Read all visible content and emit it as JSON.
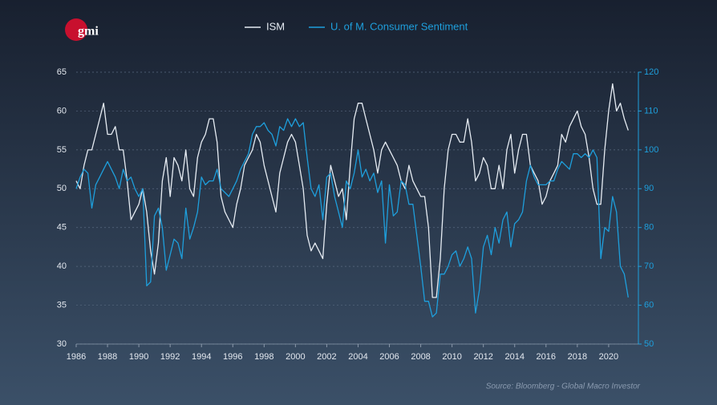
{
  "logo": "gmi",
  "chart_data": {
    "type": "line",
    "x": [
      1986,
      1986.25,
      1986.5,
      1986.75,
      1987,
      1987.25,
      1987.5,
      1987.75,
      1988,
      1988.25,
      1988.5,
      1988.75,
      1989,
      1989.25,
      1989.5,
      1989.75,
      1990,
      1990.25,
      1990.5,
      1990.75,
      1991,
      1991.25,
      1991.5,
      1991.75,
      1992,
      1992.25,
      1992.5,
      1992.75,
      1993,
      1993.25,
      1993.5,
      1993.75,
      1994,
      1994.25,
      1994.5,
      1994.75,
      1995,
      1995.25,
      1995.5,
      1995.75,
      1996,
      1996.25,
      1996.5,
      1996.75,
      1997,
      1997.25,
      1997.5,
      1997.75,
      1998,
      1998.25,
      1998.5,
      1998.75,
      1999,
      1999.25,
      1999.5,
      1999.75,
      2000,
      2000.25,
      2000.5,
      2000.75,
      2001,
      2001.25,
      2001.5,
      2001.75,
      2002,
      2002.25,
      2002.5,
      2002.75,
      2003,
      2003.25,
      2003.5,
      2003.75,
      2004,
      2004.25,
      2004.5,
      2004.75,
      2005,
      2005.25,
      2005.5,
      2005.75,
      2006,
      2006.25,
      2006.5,
      2006.75,
      2007,
      2007.25,
      2007.5,
      2007.75,
      2008,
      2008.25,
      2008.5,
      2008.75,
      2009,
      2009.25,
      2009.5,
      2009.75,
      2010,
      2010.25,
      2010.5,
      2010.75,
      2011,
      2011.25,
      2011.5,
      2011.75,
      2012,
      2012.25,
      2012.5,
      2012.75,
      2013,
      2013.25,
      2013.5,
      2013.75,
      2014,
      2014.25,
      2014.5,
      2014.75,
      2015,
      2015.25,
      2015.5,
      2015.75,
      2016,
      2016.25,
      2016.5,
      2016.75,
      2017,
      2017.25,
      2017.5,
      2017.75,
      2018,
      2018.25,
      2018.5,
      2018.75,
      2019,
      2019.25,
      2019.5,
      2019.75,
      2020,
      2020.25,
      2020.5,
      2020.75,
      2021,
      2021.25
    ],
    "series": [
      {
        "name": "ISM",
        "color": "#e6ecf3",
        "values": [
          51,
          50,
          53,
          55,
          55,
          57,
          59,
          61,
          57,
          57,
          58,
          55,
          55,
          51,
          46,
          47,
          48,
          50,
          47,
          42,
          39,
          43,
          51,
          54,
          49,
          54,
          53,
          51,
          55,
          50,
          49,
          54,
          56,
          57,
          59,
          59,
          56,
          49,
          47,
          46,
          45,
          48,
          50,
          53,
          54,
          55,
          57,
          56,
          53,
          51,
          49,
          47,
          52,
          54,
          56,
          57,
          56,
          53,
          50,
          44,
          42,
          43,
          42,
          41,
          48,
          53,
          51,
          49,
          50,
          46,
          53,
          59,
          61,
          61,
          59,
          57,
          55,
          52,
          55,
          56,
          55,
          54,
          53,
          51,
          50,
          53,
          51,
          50,
          49,
          49,
          45,
          36,
          36,
          41,
          50,
          55,
          57,
          57,
          56,
          56,
          59,
          56,
          51,
          52,
          54,
          53,
          50,
          50,
          53,
          50,
          55,
          57,
          52,
          55,
          57,
          57,
          53,
          52,
          51,
          48,
          49,
          51,
          52,
          53,
          57,
          56,
          58,
          59,
          60,
          58,
          57,
          54,
          50,
          48,
          48,
          55,
          60,
          63.5,
          60,
          61,
          59,
          57.5
        ]
      },
      {
        "name": "U. of M. Consumer Sentiment",
        "color": "#1e9fdc",
        "axis": "y2",
        "values": [
          90,
          93,
          95,
          94,
          85,
          91,
          93,
          95,
          97,
          95,
          93,
          90,
          95,
          92,
          93,
          90,
          88,
          90,
          65,
          66,
          83,
          85,
          80,
          69,
          73,
          77,
          76,
          72,
          85,
          77,
          80,
          84,
          93,
          91,
          92,
          92,
          95,
          90,
          89,
          88,
          90,
          92,
          95,
          97,
          99,
          104,
          106,
          106,
          107,
          105,
          104,
          101,
          106,
          105,
          108,
          106,
          108,
          106,
          107,
          98,
          90,
          88,
          91,
          82,
          93,
          94,
          88,
          84,
          80,
          92,
          90,
          94,
          100,
          93,
          95,
          92,
          94,
          89,
          92,
          76,
          91,
          83,
          84,
          92,
          91,
          86,
          86,
          78,
          70,
          61,
          61,
          57,
          58,
          68,
          68,
          70,
          73,
          74,
          70,
          72,
          75,
          72,
          58,
          64,
          75,
          78,
          73,
          80,
          76,
          82,
          84,
          75,
          81,
          82,
          84,
          92,
          96,
          93,
          91,
          91,
          91,
          92,
          92,
          95,
          97,
          96,
          95,
          99,
          99,
          98,
          99,
          98,
          100,
          98,
          72,
          80,
          79,
          88,
          84,
          70,
          68,
          62
        ]
      }
    ],
    "xlim": [
      1986,
      2021.9
    ],
    "xticks": [
      1986,
      1988,
      1990,
      1992,
      1994,
      1996,
      1998,
      2000,
      2002,
      2004,
      2006,
      2008,
      2010,
      2012,
      2014,
      2016,
      2018,
      2020
    ],
    "ylim": [
      30,
      65
    ],
    "yticks": [
      30,
      35,
      40,
      45,
      50,
      55,
      60,
      65
    ],
    "y2lim": [
      50,
      120
    ],
    "y2ticks": [
      50,
      60,
      70,
      80,
      90,
      100,
      110,
      120
    ],
    "grid": true,
    "source": "Source: Bloomberg - Global Macro Investor"
  }
}
